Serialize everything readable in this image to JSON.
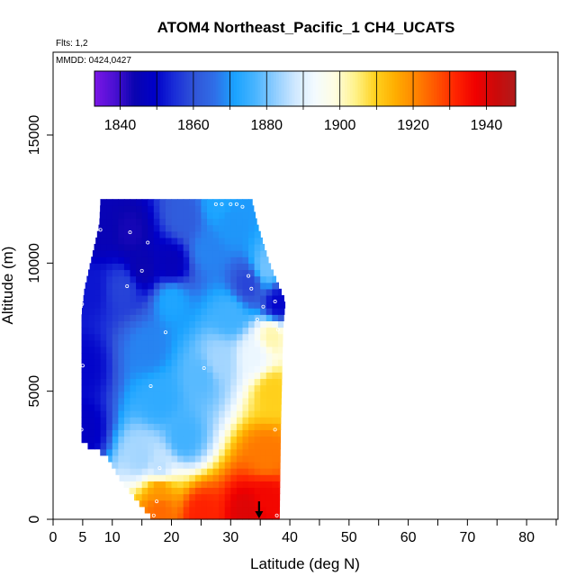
{
  "chart_data": {
    "type": "heatmap",
    "title": "ATOM4 Northeast_Pacific_1 CH4_UCATS",
    "flights_label": "Flts: 1,2",
    "mmdd_label": "MMDD: 0424,0427",
    "xlabel": "Latitude (deg N)",
    "ylabel": "Altitude (m)",
    "xlim": [
      0,
      85
    ],
    "ylim": [
      0,
      17500
    ],
    "x_ticks": [
      0,
      5,
      10,
      20,
      30,
      40,
      50,
      60,
      70,
      80
    ],
    "x_tick_labels": [
      "0",
      "5",
      "10",
      "20",
      "30",
      "40",
      "50",
      "60",
      "70",
      "80"
    ],
    "y_ticks": [
      0,
      5000,
      10000,
      15000
    ],
    "y_tick_labels": [
      "0",
      "5000",
      "10000",
      "15000"
    ],
    "colorbar": {
      "min": 1833,
      "max": 1948,
      "ticks": [
        1840,
        1860,
        1880,
        1900,
        1920,
        1940
      ],
      "tick_labels": [
        "1840",
        "1860",
        "1880",
        "1900",
        "1920",
        "1940"
      ],
      "colors": [
        "#7b16e6",
        "#4b10d2",
        "#0a04b0",
        "#0000c8",
        "#1a2ed8",
        "#3155d8",
        "#2f6fe8",
        "#1aa3ff",
        "#48b4ff",
        "#8fcdff",
        "#cfe8ff",
        "#f4fbff",
        "#fffde0",
        "#fff28a",
        "#ffd21e",
        "#ffad00",
        "#ff8500",
        "#ff5700",
        "#ff2400",
        "#f00000",
        "#cc0a0a",
        "#b01a1a"
      ]
    },
    "field": {
      "lat_range": [
        4.8,
        38.5
      ],
      "alt_range": [
        0,
        12500
      ],
      "profile_lat_min": [
        [
          0,
          16.9
        ],
        [
          500,
          15.0
        ],
        [
          1500,
          11.5
        ],
        [
          2500,
          9.0
        ],
        [
          3000,
          4.8
        ],
        [
          8000,
          4.8
        ],
        [
          9000,
          5.3
        ],
        [
          10000,
          6.3
        ],
        [
          11500,
          7.8
        ],
        [
          12500,
          8.0
        ]
      ],
      "profile_lat_max": [
        [
          0,
          38.2
        ],
        [
          3500,
          38.4
        ],
        [
          7500,
          38.8
        ],
        [
          8500,
          39.2
        ],
        [
          10000,
          36.5
        ],
        [
          11500,
          34.5
        ],
        [
          12500,
          33.5
        ]
      ],
      "value_points": [
        {
          "lat": 5,
          "alt": 3500,
          "value": 1848
        },
        {
          "lat": 5,
          "alt": 6000,
          "value": 1850
        },
        {
          "lat": 6,
          "alt": 9000,
          "value": 1852
        },
        {
          "lat": 8,
          "alt": 11300,
          "value": 1845
        },
        {
          "lat": 13,
          "alt": 11200,
          "value": 1843
        },
        {
          "lat": 15,
          "alt": 9800,
          "value": 1844
        },
        {
          "lat": 12,
          "alt": 9100,
          "value": 1858
        },
        {
          "lat": 16,
          "alt": 6700,
          "value": 1868
        },
        {
          "lat": 20,
          "alt": 8600,
          "value": 1872
        },
        {
          "lat": 25,
          "alt": 5600,
          "value": 1878
        },
        {
          "lat": 18,
          "alt": 4700,
          "value": 1874
        },
        {
          "lat": 22,
          "alt": 3200,
          "value": 1876
        },
        {
          "lat": 15,
          "alt": 2400,
          "value": 1884
        },
        {
          "lat": 18,
          "alt": 2000,
          "value": 1886
        },
        {
          "lat": 18,
          "alt": 1200,
          "value": 1918
        },
        {
          "lat": 18,
          "alt": 400,
          "value": 1924
        },
        {
          "lat": 25,
          "alt": 200,
          "value": 1932
        },
        {
          "lat": 33,
          "alt": 300,
          "value": 1940
        },
        {
          "lat": 36,
          "alt": 800,
          "value": 1936
        },
        {
          "lat": 36,
          "alt": 2500,
          "value": 1922
        },
        {
          "lat": 37,
          "alt": 5000,
          "value": 1910
        },
        {
          "lat": 37,
          "alt": 7200,
          "value": 1902
        },
        {
          "lat": 34,
          "alt": 6400,
          "value": 1892
        },
        {
          "lat": 28,
          "alt": 6200,
          "value": 1884
        },
        {
          "lat": 30,
          "alt": 8000,
          "value": 1876
        },
        {
          "lat": 33,
          "alt": 9200,
          "value": 1858
        },
        {
          "lat": 36,
          "alt": 9800,
          "value": 1880
        },
        {
          "lat": 38,
          "alt": 8400,
          "value": 1850
        },
        {
          "lat": 30,
          "alt": 11600,
          "value": 1870
        },
        {
          "lat": 28,
          "alt": 12300,
          "value": 1872
        },
        {
          "lat": 22,
          "alt": 11800,
          "value": 1862
        },
        {
          "lat": 26,
          "alt": 10500,
          "value": 1868
        },
        {
          "lat": 20,
          "alt": 10000,
          "value": 1846
        }
      ]
    },
    "sample_points": [
      {
        "lat": 4.9,
        "alt": 8400
      },
      {
        "lat": 5.0,
        "alt": 6000
      },
      {
        "lat": 4.8,
        "alt": 3500
      },
      {
        "lat": 8.0,
        "alt": 11300
      },
      {
        "lat": 13.0,
        "alt": 11200
      },
      {
        "lat": 15.0,
        "alt": 9700
      },
      {
        "lat": 12.5,
        "alt": 9100
      },
      {
        "lat": 16.0,
        "alt": 10800
      },
      {
        "lat": 19.0,
        "alt": 7300
      },
      {
        "lat": 16.5,
        "alt": 5200
      },
      {
        "lat": 25.5,
        "alt": 5900
      },
      {
        "lat": 18.0,
        "alt": 2000
      },
      {
        "lat": 17.5,
        "alt": 700
      },
      {
        "lat": 17.0,
        "alt": 150
      },
      {
        "lat": 27.5,
        "alt": 12300
      },
      {
        "lat": 28.5,
        "alt": 12300
      },
      {
        "lat": 30.0,
        "alt": 12300
      },
      {
        "lat": 31.0,
        "alt": 12300
      },
      {
        "lat": 32.0,
        "alt": 12200
      },
      {
        "lat": 33.0,
        "alt": 9500
      },
      {
        "lat": 33.5,
        "alt": 9000
      },
      {
        "lat": 34.5,
        "alt": 7800
      },
      {
        "lat": 37.5,
        "alt": 8500
      },
      {
        "lat": 38.0,
        "alt": 7400
      },
      {
        "lat": 37.5,
        "alt": 3500
      },
      {
        "lat": 37.8,
        "alt": 150
      },
      {
        "lat": 35.5,
        "alt": 8300
      }
    ],
    "marker_arrow": {
      "lat": 34.8,
      "alt_top": 700,
      "alt_bottom": 0
    }
  }
}
